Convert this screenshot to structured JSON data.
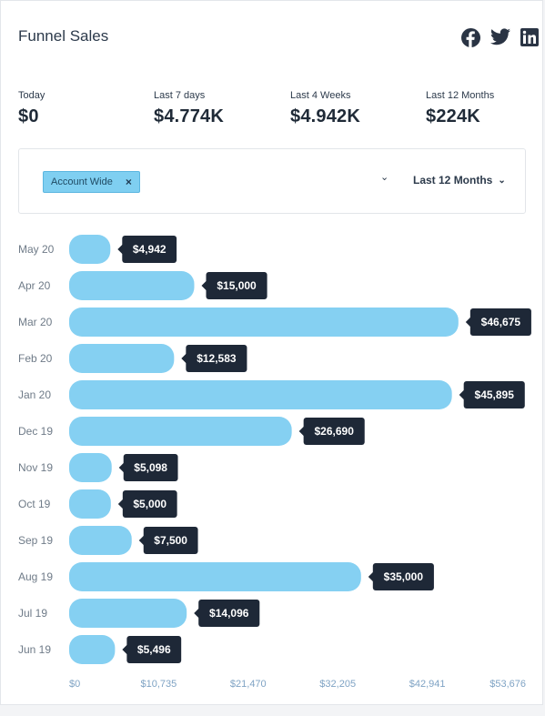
{
  "header": {
    "title": "Funnel Sales"
  },
  "social": [
    {
      "name": "facebook-icon"
    },
    {
      "name": "twitter-icon"
    },
    {
      "name": "linkedin-icon"
    }
  ],
  "stats": [
    {
      "label": "Today",
      "value": "$0"
    },
    {
      "label": "Last 7 days",
      "value": "$4.774K"
    },
    {
      "label": "Last 4 Weeks",
      "value": "$4.942K"
    },
    {
      "label": "Last 12 Months",
      "value": "$224K"
    }
  ],
  "filters": {
    "chip_label": "Account Wide",
    "chip_remove": "×",
    "scope_chevron": "⌄",
    "range_label": "Last 12 Months",
    "range_chevron": "⌄"
  },
  "colors": {
    "bar": "#85d0f2",
    "tooltip": "#1e2837",
    "accent": "#2a3444"
  },
  "chart_data": {
    "type": "bar",
    "orientation": "horizontal",
    "categories": [
      "May 20",
      "Apr 20",
      "Mar 20",
      "Feb 20",
      "Jan 20",
      "Dec 19",
      "Nov 19",
      "Oct 19",
      "Sep 19",
      "Aug 19",
      "Jul 19",
      "Jun 19"
    ],
    "values": [
      4942,
      15000,
      46675,
      12583,
      45895,
      26690,
      5098,
      5000,
      7500,
      35000,
      14096,
      5496
    ],
    "value_labels": [
      "$4,942",
      "$15,000",
      "$46,675",
      "$12,583",
      "$45,895",
      "$26,690",
      "$5,098",
      "$5,000",
      "$7,500",
      "$35,000",
      "$14,096",
      "$5,496"
    ],
    "x_ticks": [
      0,
      10735,
      21470,
      32205,
      42941,
      53676
    ],
    "x_tick_labels": [
      "$0",
      "$10,735",
      "$21,470",
      "$32,205",
      "$42,941",
      "$53,676"
    ],
    "xlim": [
      0,
      53676
    ]
  }
}
